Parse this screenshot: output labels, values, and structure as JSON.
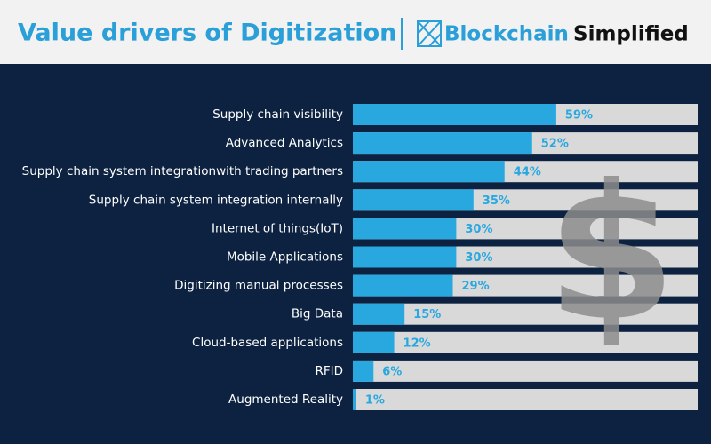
{
  "chart_data": {
    "type": "bar",
    "orientation": "horizontal",
    "title": "Value drivers of Digitization",
    "categories": [
      "Supply chain visibility",
      "Advanced Analytics",
      "Supply chain system integrationwith trading partners",
      "Supply chain system integration internally",
      "Internet of things(IoT)",
      "Mobile Applications",
      "Digitizing manual processes",
      "Big Data",
      "Cloud-based applications",
      "RFID",
      "Augmented Reality"
    ],
    "values": [
      59,
      52,
      44,
      35,
      30,
      30,
      29,
      15,
      12,
      6,
      1
    ],
    "value_labels": [
      "59%",
      "52%",
      "44%",
      "35%",
      "30%",
      "30%",
      "29%",
      "15%",
      "12%",
      "6%",
      "1%"
    ],
    "xlim": [
      0,
      100
    ],
    "color": "#29a8e0",
    "track_color": "#d9d9d9"
  },
  "brand": {
    "first": "Blockchain",
    "second": "Simplified"
  },
  "background_symbol": "$"
}
